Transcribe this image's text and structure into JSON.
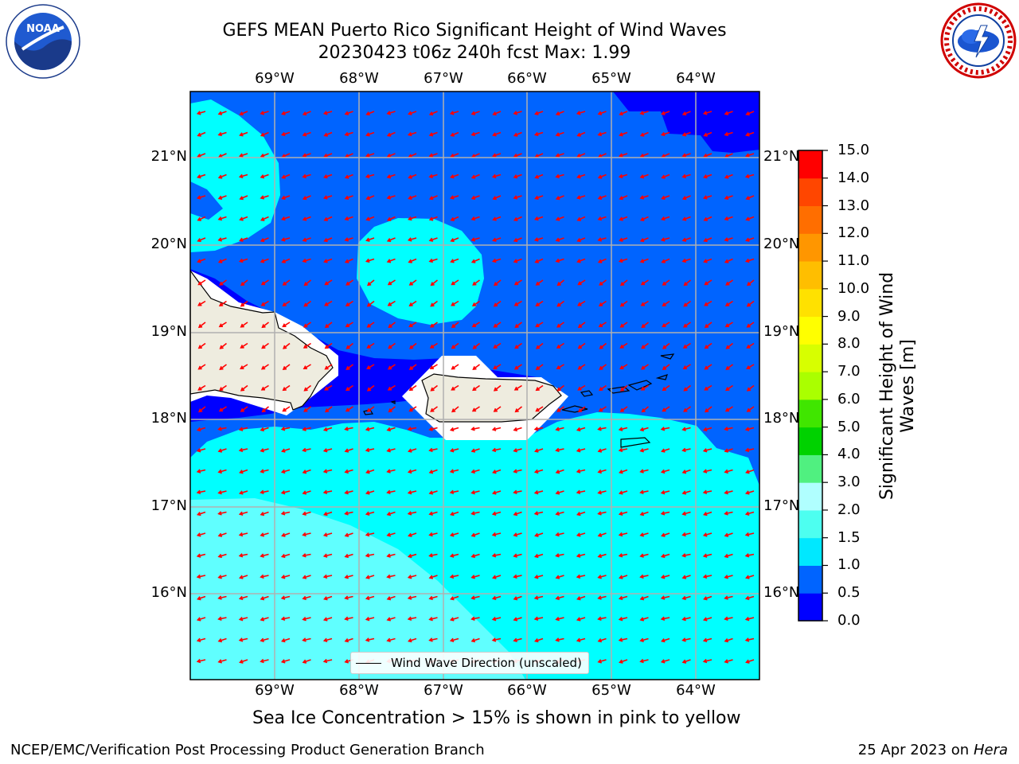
{
  "title_line1": "GEFS MEAN Puerto Rico Significant Height of Wind Waves",
  "title_line2": "20230423 t06z 240h fcst   Max: 1.99",
  "lon_labels": [
    "69°W",
    "68°W",
    "67°W",
    "66°W",
    "65°W",
    "64°W"
  ],
  "lat_labels": [
    "21°N",
    "20°N",
    "19°N",
    "18°N",
    "17°N",
    "16°N"
  ],
  "colorbar": {
    "title": "Significant Height of Wind Waves [m]",
    "title_line1": "Significant Height of Wind",
    "title_line2": "Waves [m]",
    "ticks": [
      "0.0",
      "0.5",
      "1.0",
      "1.5",
      "2.0",
      "3.0",
      "4.0",
      "5.0",
      "6.0",
      "7.0",
      "8.0",
      "9.0",
      "10.0",
      "11.0",
      "12.0",
      "13.0",
      "14.0",
      "15.0"
    ],
    "colors": [
      "#0000ff",
      "#0064ff",
      "#00e8ff",
      "#4dfff0",
      "#b0ffff",
      "#50f080",
      "#00d200",
      "#40e600",
      "#aaff00",
      "#d7ff00",
      "#ffff00",
      "#ffe100",
      "#ffbe00",
      "#ff9600",
      "#ff6e00",
      "#ff4600",
      "#ff0000"
    ]
  },
  "map_colors": {
    "land": "#eeecdf",
    "band_0_05": "#0000ff",
    "band_05_1": "#0064ff",
    "band_1_15": "#00ffff",
    "band_15_2": "#60ffff",
    "arrow": "#ff0000",
    "grid": "#b0b0b0"
  },
  "legend_label": "Wind Wave Direction (unscaled)",
  "ice_note": "Sea Ice Concentration > 15% is shown in pink to yellow",
  "footer_left": "NCEP/EMC/Verification Post Processing Product Generation Branch",
  "footer_date": "25 Apr 2023 on ",
  "footer_host": "Hera",
  "logos": {
    "left": "noaa-logo",
    "left_text": "NOAA",
    "right": "nws-logo"
  }
}
